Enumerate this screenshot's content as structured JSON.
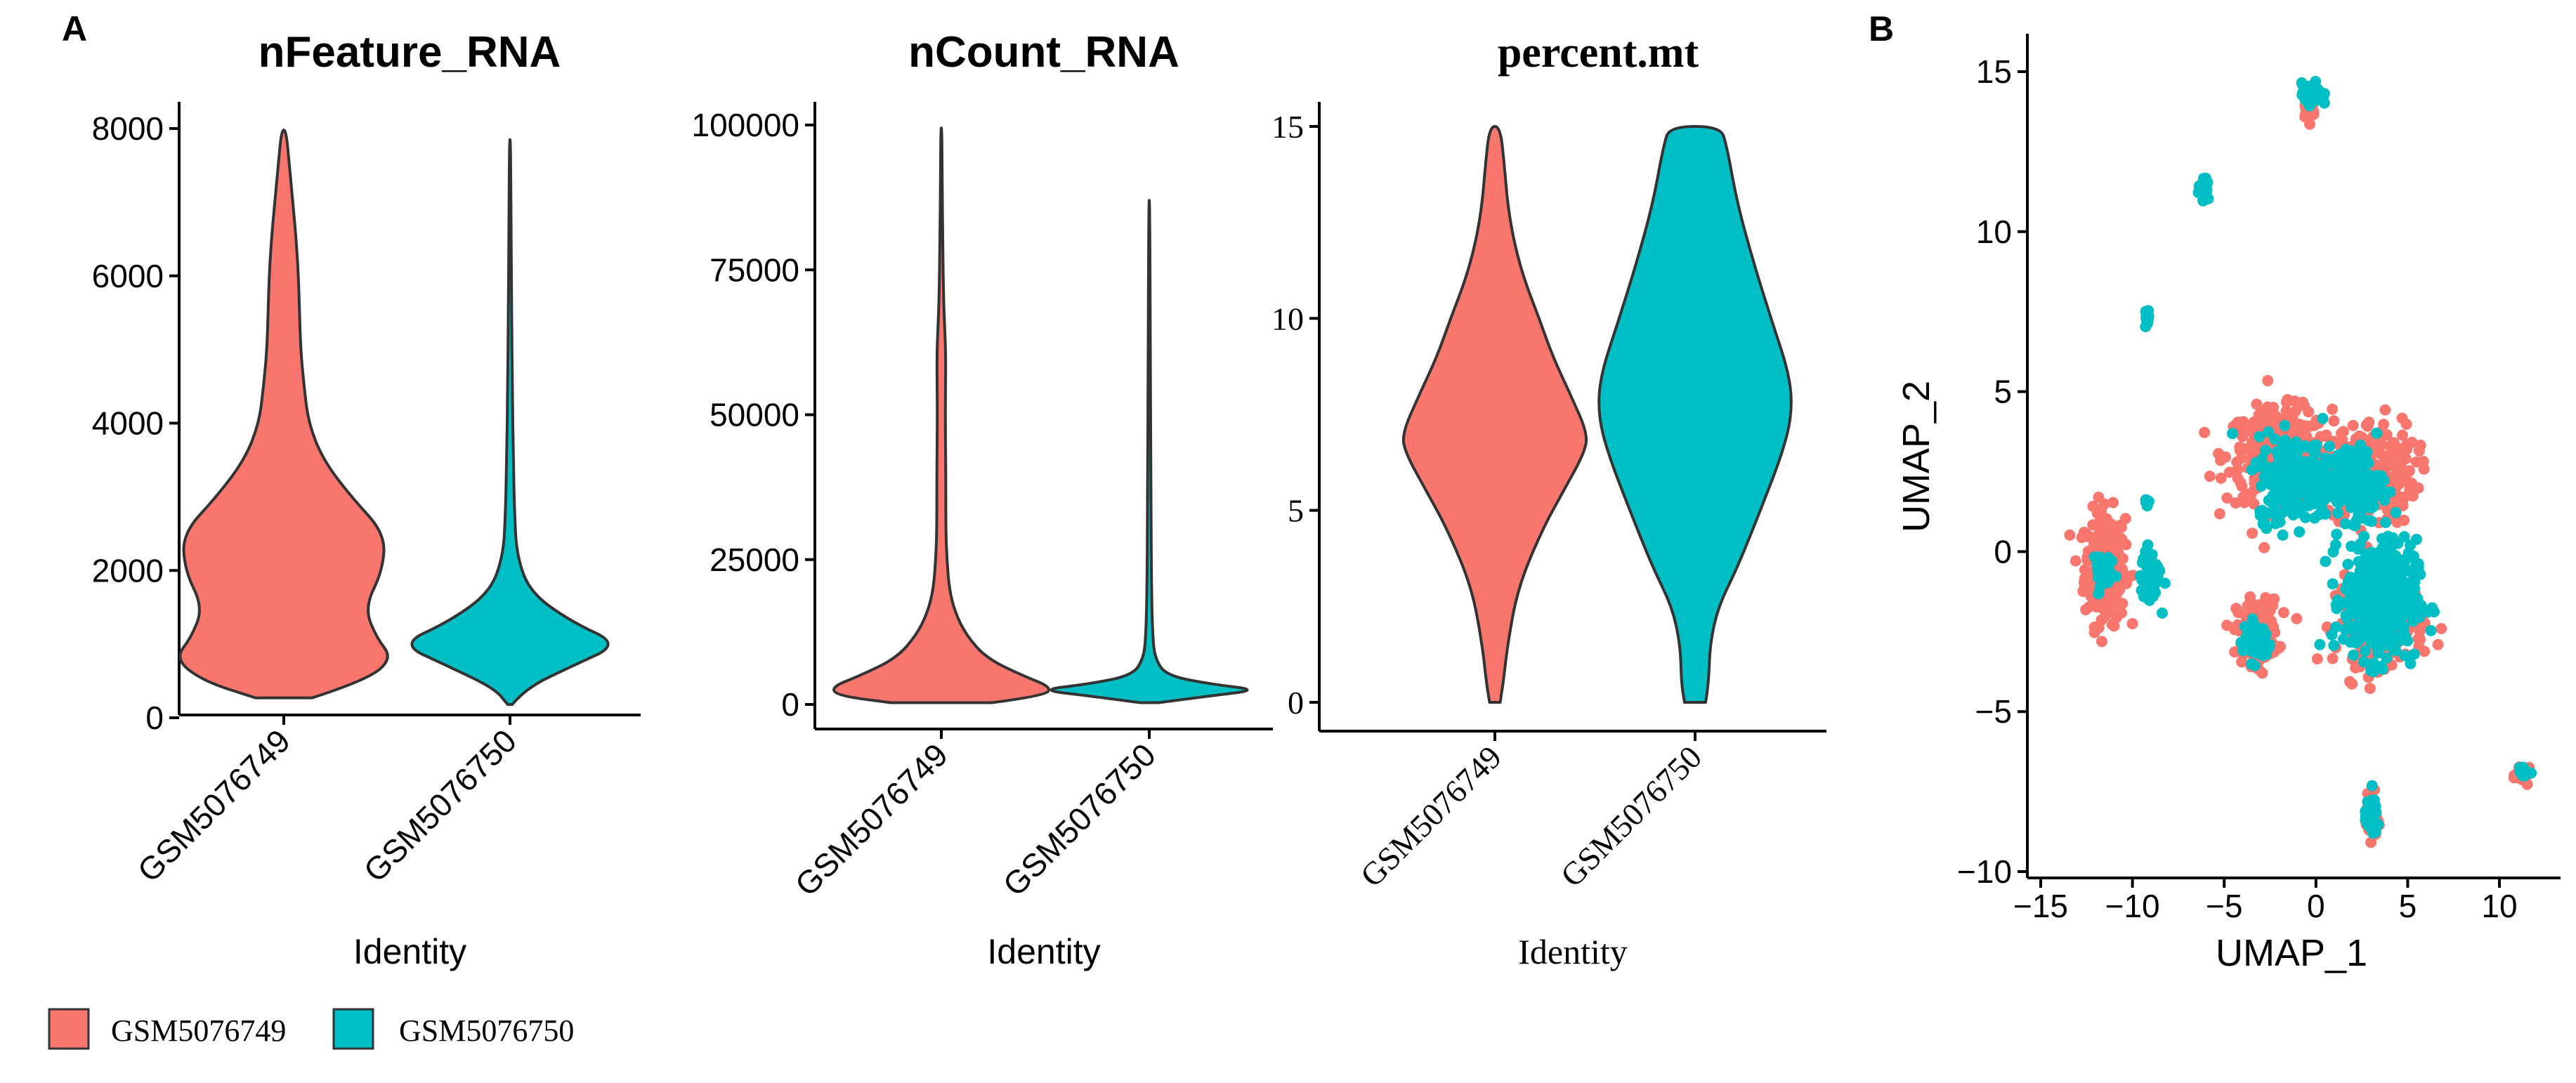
{
  "panel_labels": {
    "a": "A",
    "b": "B"
  },
  "colors": {
    "GSM5076749": "#F8766D",
    "GSM5076750": "#00BFC4",
    "axis": "#000000",
    "outline": "#333333"
  },
  "legend": {
    "items": [
      {
        "label": "GSM5076749",
        "color": "#F8766D"
      },
      {
        "label": "GSM5076750",
        "color": "#00BFC4"
      }
    ]
  },
  "chart_data": [
    {
      "type": "violin",
      "title": "nFeature_RNA",
      "xlabel": "Identity",
      "ylabel": "",
      "categories": [
        "GSM5076749",
        "GSM5076750"
      ],
      "ylim": [
        0,
        8000
      ],
      "yticks": [
        0,
        2000,
        4000,
        6000,
        8000
      ],
      "ytick_labels": [
        "0",
        "2000",
        "4000",
        "6000",
        "8000"
      ],
      "violins": [
        {
          "name": "GSM5076749",
          "min": 270,
          "max": 7980,
          "profile": [
            [
              270,
              0.25
            ],
            [
              500,
              0.72
            ],
            [
              800,
              0.97
            ],
            [
              1100,
              0.82
            ],
            [
              1500,
              0.72
            ],
            [
              2000,
              0.88
            ],
            [
              2500,
              0.9
            ],
            [
              3000,
              0.6
            ],
            [
              3500,
              0.35
            ],
            [
              4000,
              0.22
            ],
            [
              4500,
              0.18
            ],
            [
              5000,
              0.15
            ],
            [
              5500,
              0.14
            ],
            [
              6000,
              0.13
            ],
            [
              6500,
              0.11
            ],
            [
              7000,
              0.08
            ],
            [
              7500,
              0.05
            ],
            [
              7980,
              0.02
            ]
          ]
        },
        {
          "name": "GSM5076750",
          "min": 180,
          "max": 7850,
          "profile": [
            [
              180,
              0.02
            ],
            [
              400,
              0.14
            ],
            [
              700,
              0.55
            ],
            [
              1000,
              0.98
            ],
            [
              1300,
              0.55
            ],
            [
              1700,
              0.18
            ],
            [
              2200,
              0.06
            ],
            [
              2800,
              0.04
            ],
            [
              3500,
              0.03
            ],
            [
              4500,
              0.02
            ],
            [
              5500,
              0.015
            ],
            [
              6500,
              0.01
            ],
            [
              7850,
              0.005
            ]
          ]
        }
      ]
    },
    {
      "type": "violin",
      "title": "nCount_RNA",
      "xlabel": "Identity",
      "ylabel": "",
      "categories": [
        "GSM5076749",
        "GSM5076750"
      ],
      "ylim": [
        0,
        100000
      ],
      "yticks": [
        0,
        25000,
        50000,
        75000,
        100000
      ],
      "ytick_labels": [
        "0",
        "25000",
        "50000",
        "75000",
        "100000"
      ],
      "violins": [
        {
          "name": "GSM5076749",
          "min": 300,
          "max": 99500,
          "profile": [
            [
              300,
              0.45
            ],
            [
              1500,
              0.92
            ],
            [
              3000,
              0.98
            ],
            [
              5000,
              0.72
            ],
            [
              8000,
              0.4
            ],
            [
              12000,
              0.22
            ],
            [
              16000,
              0.12
            ],
            [
              20000,
              0.07
            ],
            [
              25000,
              0.05
            ],
            [
              30000,
              0.04
            ],
            [
              40000,
              0.04
            ],
            [
              50000,
              0.035
            ],
            [
              60000,
              0.04
            ],
            [
              65000,
              0.03
            ],
            [
              70000,
              0.02
            ],
            [
              80000,
              0.012
            ],
            [
              90000,
              0.008
            ],
            [
              99500,
              0.004
            ]
          ]
        },
        {
          "name": "GSM5076750",
          "min": 300,
          "max": 87000,
          "profile": [
            [
              300,
              0.08
            ],
            [
              1500,
              0.55
            ],
            [
              2500,
              0.98
            ],
            [
              3500,
              0.55
            ],
            [
              5000,
              0.15
            ],
            [
              8000,
              0.05
            ],
            [
              12000,
              0.03
            ],
            [
              20000,
              0.02
            ],
            [
              35000,
              0.015
            ],
            [
              60000,
              0.01
            ],
            [
              87000,
              0.004
            ]
          ]
        }
      ]
    },
    {
      "type": "violin",
      "title": "percent.mt",
      "xlabel": "Identity",
      "ylabel": "",
      "categories": [
        "GSM5076749",
        "GSM5076750"
      ],
      "ylim": [
        0,
        15
      ],
      "yticks": [
        0,
        5,
        10,
        15
      ],
      "ytick_labels": [
        "0",
        "5",
        "10",
        "15"
      ],
      "violins": [
        {
          "name": "GSM5076749",
          "min": 0,
          "max": 15,
          "profile": [
            [
              0,
              0.05
            ],
            [
              0.5,
              0.08
            ],
            [
              1.5,
              0.12
            ],
            [
              3,
              0.22
            ],
            [
              4.5,
              0.45
            ],
            [
              5.5,
              0.65
            ],
            [
              6.5,
              0.85
            ],
            [
              7,
              0.88
            ],
            [
              8,
              0.72
            ],
            [
              9,
              0.55
            ],
            [
              10,
              0.42
            ],
            [
              11,
              0.28
            ],
            [
              12,
              0.18
            ],
            [
              13,
              0.12
            ],
            [
              14,
              0.09
            ],
            [
              15,
              0.05
            ]
          ]
        },
        {
          "name": "GSM5076750",
          "min": 0,
          "max": 15,
          "profile": [
            [
              0,
              0.1
            ],
            [
              0.5,
              0.13
            ],
            [
              1.5,
              0.14
            ],
            [
              2.5,
              0.22
            ],
            [
              3.5,
              0.4
            ],
            [
              5,
              0.62
            ],
            [
              6.5,
              0.83
            ],
            [
              7.5,
              0.92
            ],
            [
              8.5,
              0.9
            ],
            [
              10,
              0.72
            ],
            [
              11.5,
              0.55
            ],
            [
              13,
              0.4
            ],
            [
              14.5,
              0.3
            ],
            [
              15,
              0.24
            ]
          ]
        }
      ]
    },
    {
      "type": "scatter",
      "title": "",
      "xlabel": "UMAP_1",
      "ylabel": "UMAP_2",
      "xlim": [
        -15,
        12.5
      ],
      "ylim": [
        -10,
        16
      ],
      "xticks": [
        -15,
        -10,
        -5,
        0,
        5,
        10
      ],
      "xtick_labels": [
        "−15",
        "−10",
        "−5",
        "0",
        "5",
        "10"
      ],
      "yticks": [
        -10,
        -5,
        0,
        5,
        10,
        15
      ],
      "ytick_labels": [
        "−10",
        "−5",
        "0",
        "5",
        "10",
        "15"
      ],
      "series": [
        {
          "name": "GSM5076749",
          "clusters": [
            {
              "cx": -11.5,
              "cy": -0.5,
              "sx": 1.0,
              "sy": 1.6,
              "n": 260
            },
            {
              "cx": -2.0,
              "cy": 3.0,
              "sx": 2.6,
              "sy": 1.3,
              "n": 330
            },
            {
              "cx": 3.0,
              "cy": 2.5,
              "sx": 2.2,
              "sy": 1.5,
              "n": 260
            },
            {
              "cx": -3.2,
              "cy": -2.5,
              "sx": 1.0,
              "sy": 0.9,
              "n": 140
            },
            {
              "cx": 3.5,
              "cy": -2.2,
              "sx": 2.2,
              "sy": 1.2,
              "n": 200
            },
            {
              "cx": 3.0,
              "cy": -8.3,
              "sx": 0.3,
              "sy": 0.6,
              "n": 40
            },
            {
              "cx": -0.4,
              "cy": 13.9,
              "sx": 0.3,
              "sy": 0.4,
              "n": 30
            },
            {
              "cx": 11.3,
              "cy": -7.0,
              "sx": 0.35,
              "sy": 0.2,
              "n": 25
            }
          ]
        },
        {
          "name": "GSM5076750",
          "clusters": [
            {
              "cx": 3.5,
              "cy": -1.5,
              "sx": 1.8,
              "sy": 1.7,
              "n": 420
            },
            {
              "cx": -1.2,
              "cy": 2.3,
              "sx": 1.8,
              "sy": 1.2,
              "n": 260
            },
            {
              "cx": 2.0,
              "cy": 2.2,
              "sx": 1.5,
              "sy": 1.0,
              "n": 160
            },
            {
              "cx": -9.0,
              "cy": -0.8,
              "sx": 0.5,
              "sy": 0.8,
              "n": 60
            },
            {
              "cx": -11.8,
              "cy": -0.5,
              "sx": 0.5,
              "sy": 0.5,
              "n": 30
            },
            {
              "cx": -3.2,
              "cy": -2.8,
              "sx": 0.7,
              "sy": 0.6,
              "n": 50
            },
            {
              "cx": 3.0,
              "cy": -8.3,
              "sx": 0.3,
              "sy": 0.5,
              "n": 60
            },
            {
              "cx": -0.2,
              "cy": 14.3,
              "sx": 0.5,
              "sy": 0.3,
              "n": 70
            },
            {
              "cx": -6.1,
              "cy": 11.3,
              "sx": 0.25,
              "sy": 0.3,
              "n": 30
            },
            {
              "cx": -9.2,
              "cy": 7.3,
              "sx": 0.1,
              "sy": 0.25,
              "n": 20
            },
            {
              "cx": -9.2,
              "cy": 1.6,
              "sx": 0.1,
              "sy": 0.1,
              "n": 8
            },
            {
              "cx": 11.3,
              "cy": -6.9,
              "sx": 0.3,
              "sy": 0.15,
              "n": 20
            }
          ]
        }
      ]
    }
  ]
}
